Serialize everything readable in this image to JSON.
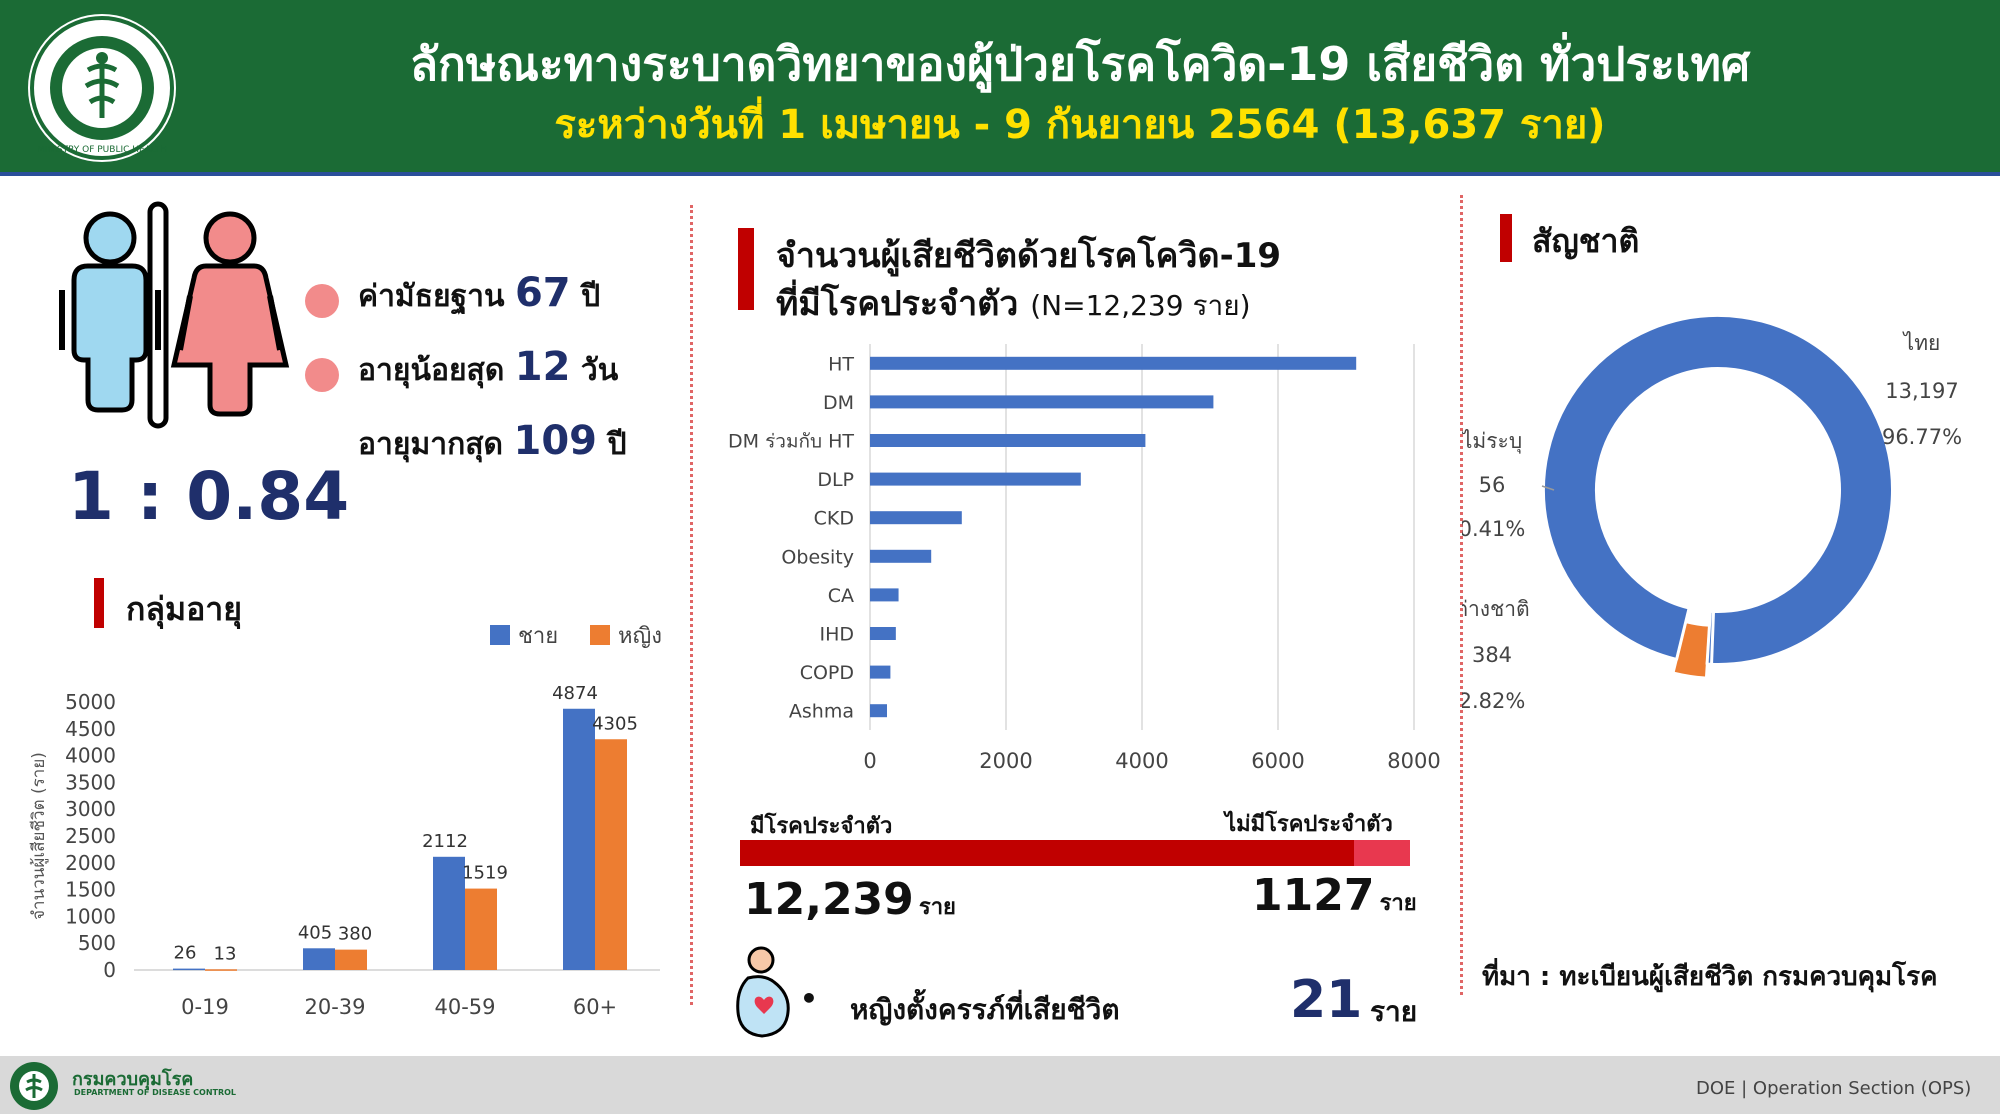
{
  "header": {
    "title": "ลักษณะทางระบาดวิทยาของผู้ป่วยโรคโควิด-19 เสียชีวิต ทั่วประเทศ",
    "subtitle": "ระหว่างวันที่  1 เมษายน - 9 กันยายน 2564 (13,637 ราย)",
    "logo_text": "MINISTRY OF PUBLIC HEALTH"
  },
  "colors": {
    "header_green": "#1b6b35",
    "blue": "#4472c4",
    "orange": "#ed7d31",
    "red": "#c00000",
    "navy": "#1f2f6b",
    "pink": "#f28b8b",
    "light_red": "#e8384f"
  },
  "stats": {
    "median_label": "ค่ามัธยฐาน",
    "median_value": "67",
    "median_unit": "ปี",
    "min_label": "อายุน้อยสุด",
    "min_value": "12",
    "min_unit": "วัน",
    "max_label": "อายุมากสุด",
    "max_value": "109",
    "max_unit": "ปี",
    "ratio": "1 : 0.84",
    "male_icon": "male-figure-icon",
    "female_icon": "female-figure-icon"
  },
  "pregnant": {
    "icon": "pregnant-woman-icon",
    "bullet": "•",
    "label": "หญิงตั้งครรภ์ที่เสียชีวิต",
    "value": "21",
    "unit": "ราย"
  },
  "comorbidity_bar": {
    "with_label": "มีโรคประจำตัว",
    "with_value": "12,239",
    "with_unit": "ราย",
    "with_count": 12239,
    "without_label": "ไม่มีโรคประจำตัว",
    "without_value": "1127",
    "without_unit": "ราย",
    "without_count": 1127
  },
  "source": "ที่มา : ทะเบียนผู้เสียชีวิต   กรมควบคุมโรค",
  "footer": {
    "org_th": "กรมควบคุมโรค",
    "org_en": "DEPARTMENT OF DISEASE CONTROL",
    "right": "DOE | Operation Section (OPS)"
  },
  "chart_data": [
    {
      "type": "bar",
      "title": "กลุ่มอายุ",
      "ylabel": "จำนวนผู้เสียชีวิต (ราย)",
      "categories": [
        "0-19",
        "20-39",
        "40-59",
        "60+"
      ],
      "series": [
        {
          "name": "ชาย",
          "values": [
            26,
            405,
            2112,
            4874
          ],
          "labels": [
            "26",
            "405",
            "2112",
            "4874"
          ],
          "color": "#4472c4"
        },
        {
          "name": "หญิง",
          "values": [
            13,
            380,
            1519,
            4305
          ],
          "labels": [
            "13",
            "380",
            "1519",
            "4305"
          ],
          "color": "#ed7d31"
        }
      ],
      "ylim": [
        0,
        5000
      ],
      "yticks": [
        "0",
        "500",
        "1000",
        "1500",
        "2000",
        "2500",
        "3000",
        "3500",
        "4000",
        "4500",
        "5000"
      ],
      "legend": "top-right"
    },
    {
      "type": "bar",
      "orientation": "horizontal",
      "title": "จำนวนผู้เสียชีวิตด้วยโรคโควิด-19",
      "title2": "ที่มีโรคประจำตัว",
      "title_note": "(N=12,239 ราย)",
      "categories": [
        "HT",
        "DM",
        "DM ร่วมกับ HT",
        "DLP",
        "CKD",
        "Obesity",
        "CA",
        "IHD",
        "COPD",
        "Ashma"
      ],
      "values": [
        7150,
        5050,
        4050,
        3100,
        1350,
        900,
        420,
        380,
        300,
        250
      ],
      "xlim": [
        0,
        8000
      ],
      "xticks": [
        "0",
        "2000",
        "4000",
        "6000",
        "8000"
      ],
      "grid": true,
      "color": "#4472c4"
    },
    {
      "type": "pie",
      "title": "สัญชาติ",
      "donut": true,
      "slices": [
        {
          "name": "ไทย",
          "value": 13197,
          "value_label": "13,197",
          "percent": "96.77%",
          "color": "#4472c4"
        },
        {
          "name": "ไม่ระบุ",
          "value": 56,
          "value_label": "56",
          "percent": "0.41%",
          "color": "#4472c4"
        },
        {
          "name": "ต่างชาติ",
          "value": 384,
          "value_label": "384",
          "percent": "2.82%",
          "color": "#ed7d31"
        }
      ]
    }
  ]
}
